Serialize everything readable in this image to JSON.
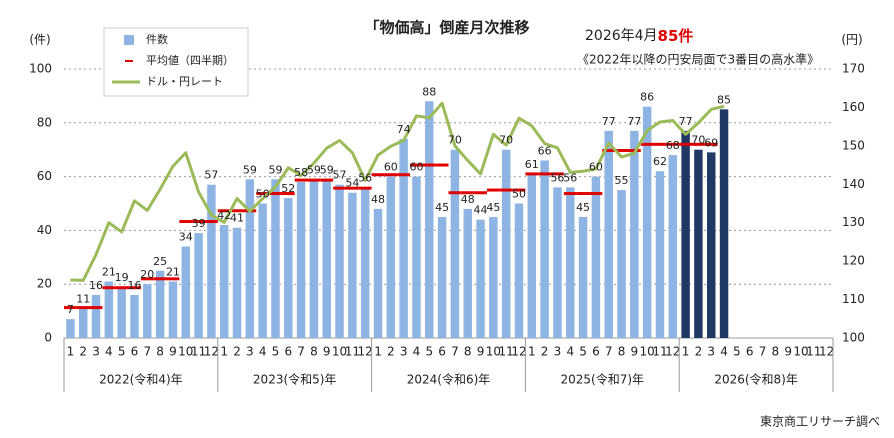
{
  "chart_data": {
    "type": "bar",
    "title": "「物価高」倒産月次推移",
    "annotation_prefix": "2026年4月",
    "annotation_highlight": "85件",
    "annotation_note": "《2022年以降の円安局面で3番目の高水準》",
    "source": "東京商工リサーチ調べ",
    "y_unit": "(件)",
    "y2_unit": "(円)",
    "categories": [
      "1",
      "2",
      "3",
      "4",
      "5",
      "6",
      "7",
      "8",
      "9",
      "10",
      "11",
      "12",
      "1",
      "2",
      "3",
      "4",
      "5",
      "6",
      "7",
      "8",
      "9",
      "10",
      "11",
      "12",
      "1",
      "2",
      "3",
      "4",
      "5",
      "6",
      "7",
      "8",
      "9",
      "10",
      "11",
      "12",
      "1",
      "2",
      "3",
      "4",
      "5",
      "6",
      "7",
      "8",
      "9",
      "10",
      "11",
      "12",
      "1",
      "2",
      "3",
      "4",
      "5",
      "6",
      "7",
      "8",
      "9",
      "10",
      "11",
      "12"
    ],
    "x_groups": [
      "2022(令和4)年",
      "2023(令和5)年",
      "2024(令和6)年",
      "2025(令和7)年",
      "2026(令和8)年"
    ],
    "ylim": [
      0,
      100
    ],
    "yticks": [
      0,
      20,
      40,
      60,
      80,
      100
    ],
    "y2lim": [
      100,
      170
    ],
    "y2ticks": [
      100,
      110,
      120,
      130,
      140,
      150,
      160,
      170
    ],
    "grid": true,
    "legend": "top-left",
    "series": [
      {
        "name": "件数",
        "type": "bar",
        "color": "#8db4e2",
        "values": [
          7,
          11,
          16,
          21,
          19,
          16,
          20,
          25,
          21,
          34,
          39,
          57,
          42,
          41,
          59,
          50,
          59,
          52,
          58,
          59,
          59,
          57,
          54,
          56,
          48,
          60,
          74,
          60,
          88,
          45,
          70,
          48,
          44,
          45,
          70,
          50,
          61,
          66,
          56,
          56,
          45,
          60,
          77,
          55,
          77,
          86,
          62,
          68,
          77,
          70,
          69,
          85,
          null,
          null,
          null,
          null,
          null,
          null,
          null,
          null
        ],
        "colors": [
          "#8db4e2",
          "#8db4e2",
          "#8db4e2",
          "#8db4e2",
          "#8db4e2",
          "#8db4e2",
          "#8db4e2",
          "#8db4e2",
          "#8db4e2",
          "#8db4e2",
          "#8db4e2",
          "#8db4e2",
          "#8db4e2",
          "#8db4e2",
          "#8db4e2",
          "#8db4e2",
          "#8db4e2",
          "#8db4e2",
          "#8db4e2",
          "#8db4e2",
          "#8db4e2",
          "#8db4e2",
          "#8db4e2",
          "#8db4e2",
          "#8db4e2",
          "#8db4e2",
          "#8db4e2",
          "#8db4e2",
          "#8db4e2",
          "#8db4e2",
          "#8db4e2",
          "#8db4e2",
          "#8db4e2",
          "#8db4e2",
          "#8db4e2",
          "#8db4e2",
          "#8db4e2",
          "#8db4e2",
          "#8db4e2",
          "#8db4e2",
          "#8db4e2",
          "#8db4e2",
          "#8db4e2",
          "#8db4e2",
          "#8db4e2",
          "#8db4e2",
          "#8db4e2",
          "#8db4e2",
          "#1f3864",
          "#1f3864",
          "#1f3864",
          "#1f3864",
          null,
          null,
          null,
          null,
          null,
          null,
          null,
          null
        ]
      },
      {
        "name": "平均値（四半期）",
        "type": "step",
        "color": "#e00000",
        "values": [
          11.3,
          11.3,
          11.3,
          18.7,
          18.7,
          18.7,
          22,
          22,
          22,
          43.3,
          43.3,
          43.3,
          47.3,
          47.3,
          47.3,
          53.7,
          53.7,
          53.7,
          58.7,
          58.7,
          58.7,
          55.7,
          55.7,
          55.7,
          60.7,
          60.7,
          60.7,
          64.3,
          64.3,
          64.3,
          54,
          54,
          54,
          55,
          55,
          55,
          61,
          61,
          61,
          53.7,
          53.7,
          53.7,
          69.7,
          69.7,
          69.7,
          72,
          72,
          72,
          72,
          72,
          72,
          null,
          null,
          null,
          null,
          null,
          null,
          null,
          null,
          null
        ]
      },
      {
        "name": "ドル・円レート",
        "type": "line",
        "axis": "y2",
        "color": "#9bbb59",
        "values": [
          115.1,
          115.0,
          121.7,
          130.0,
          127.6,
          135.7,
          133.2,
          138.7,
          144.7,
          148.2,
          138.0,
          132.0,
          130.1,
          136.3,
          133.0,
          136.3,
          139.3,
          144.3,
          142.3,
          145.5,
          149.4,
          151.4,
          148.2,
          141.0,
          147.6,
          149.9,
          151.4,
          157.8,
          157.3,
          161.1,
          150.0,
          146.2,
          142.7,
          153.0,
          150.2,
          157.2,
          155.2,
          150.6,
          149.5,
          143.1,
          143.4,
          144.0,
          150.7,
          147.1,
          148.1,
          154.0,
          156.2,
          156.6,
          153.0,
          156.0,
          159.5,
          160.3,
          null,
          null,
          null,
          null,
          null,
          null,
          null,
          null
        ]
      }
    ]
  }
}
